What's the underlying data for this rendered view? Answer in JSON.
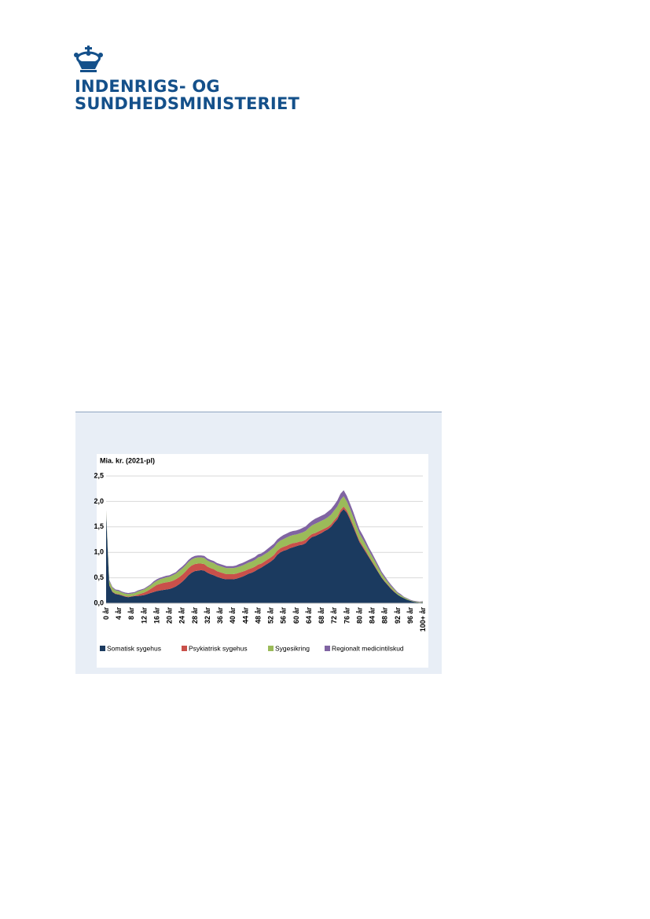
{
  "header": {
    "line1": "INDENRIGS- OG",
    "line2": "SUNDHEDSMINISTERIET"
  },
  "chart_data": {
    "type": "stacked-area",
    "ylabel": "Mia. kr. (2021-pl)",
    "ylim": [
      0,
      2.5
    ],
    "yticks": [
      {
        "value": 0,
        "label": "0,0"
      },
      {
        "value": 0.5,
        "label": "0,5"
      },
      {
        "value": 1,
        "label": "1,0"
      },
      {
        "value": 1.5,
        "label": "1,5"
      },
      {
        "value": 2,
        "label": "2,0"
      },
      {
        "value": 2.5,
        "label": "2,5"
      }
    ],
    "grid": true,
    "legend": "bottom",
    "categories": [
      "0 år",
      null,
      null,
      null,
      "4 år",
      null,
      null,
      null,
      "8 år",
      null,
      null,
      null,
      "12 år",
      null,
      null,
      null,
      "16 år",
      null,
      null,
      null,
      "20 år",
      null,
      null,
      null,
      "24 år",
      null,
      null,
      null,
      "28 år",
      null,
      null,
      null,
      "32 år",
      null,
      null,
      null,
      "36 år",
      null,
      null,
      null,
      "40 år",
      null,
      null,
      null,
      "44 år",
      null,
      null,
      null,
      "48 år",
      null,
      null,
      null,
      "52 år",
      null,
      null,
      null,
      "56 år",
      null,
      null,
      null,
      "60 år",
      null,
      null,
      null,
      "64 år",
      null,
      null,
      null,
      "68 år",
      null,
      null,
      null,
      "72 år",
      null,
      null,
      null,
      "76 år",
      null,
      null,
      null,
      "80 år",
      null,
      null,
      null,
      "84 år",
      null,
      null,
      null,
      "88 år",
      null,
      null,
      null,
      "92 år",
      null,
      null,
      null,
      "96 år",
      null,
      null,
      null,
      "100+ år"
    ],
    "series": [
      {
        "name": "Somatisk sygehus",
        "color": "#1b3a5f",
        "values": [
          1.75,
          0.35,
          0.22,
          0.18,
          0.17,
          0.15,
          0.13,
          0.12,
          0.13,
          0.14,
          0.14,
          0.15,
          0.16,
          0.18,
          0.2,
          0.22,
          0.24,
          0.25,
          0.26,
          0.27,
          0.28,
          0.3,
          0.33,
          0.37,
          0.42,
          0.48,
          0.55,
          0.6,
          0.63,
          0.64,
          0.65,
          0.64,
          0.6,
          0.57,
          0.55,
          0.52,
          0.5,
          0.48,
          0.47,
          0.47,
          0.47,
          0.48,
          0.5,
          0.52,
          0.55,
          0.58,
          0.6,
          0.63,
          0.67,
          0.7,
          0.74,
          0.78,
          0.82,
          0.87,
          0.95,
          1.0,
          1.03,
          1.05,
          1.08,
          1.1,
          1.12,
          1.14,
          1.15,
          1.18,
          1.25,
          1.3,
          1.32,
          1.35,
          1.38,
          1.42,
          1.45,
          1.5,
          1.58,
          1.65,
          1.78,
          1.85,
          1.78,
          1.65,
          1.5,
          1.35,
          1.2,
          1.1,
          1.0,
          0.9,
          0.8,
          0.7,
          0.6,
          0.5,
          0.42,
          0.35,
          0.28,
          0.22,
          0.17,
          0.13,
          0.1,
          0.07,
          0.05,
          0.03,
          0.02,
          0.01,
          0.02
        ]
      },
      {
        "name": "Psykiatrisk sygehus",
        "color": "#c9504a",
        "values": [
          0.01,
          0.01,
          0.01,
          0.01,
          0.01,
          0.01,
          0.01,
          0.01,
          0.01,
          0.01,
          0.03,
          0.04,
          0.05,
          0.06,
          0.08,
          0.1,
          0.12,
          0.13,
          0.14,
          0.14,
          0.14,
          0.14,
          0.14,
          0.14,
          0.14,
          0.14,
          0.14,
          0.14,
          0.14,
          0.14,
          0.13,
          0.13,
          0.12,
          0.12,
          0.12,
          0.11,
          0.11,
          0.11,
          0.1,
          0.1,
          0.1,
          0.1,
          0.1,
          0.1,
          0.09,
          0.09,
          0.09,
          0.09,
          0.09,
          0.08,
          0.08,
          0.08,
          0.08,
          0.08,
          0.08,
          0.08,
          0.08,
          0.08,
          0.08,
          0.08,
          0.07,
          0.07,
          0.07,
          0.07,
          0.06,
          0.06,
          0.06,
          0.06,
          0.06,
          0.05,
          0.05,
          0.05,
          0.05,
          0.05,
          0.05,
          0.05,
          0.04,
          0.04,
          0.04,
          0.03,
          0.03,
          0.03,
          0.03,
          0.02,
          0.02,
          0.02,
          0.01,
          0.01,
          0.01,
          0.01,
          0.01,
          0.01,
          0,
          0,
          0,
          0,
          0,
          0,
          0,
          0,
          0
        ]
      },
      {
        "name": "Sygesikring",
        "color": "#9bbb59",
        "values": [
          0.05,
          0.08,
          0.07,
          0.06,
          0.06,
          0.05,
          0.05,
          0.05,
          0.05,
          0.05,
          0.06,
          0.06,
          0.06,
          0.07,
          0.07,
          0.08,
          0.08,
          0.09,
          0.09,
          0.1,
          0.1,
          0.11,
          0.11,
          0.12,
          0.12,
          0.12,
          0.12,
          0.12,
          0.12,
          0.12,
          0.12,
          0.12,
          0.12,
          0.12,
          0.12,
          0.12,
          0.12,
          0.12,
          0.12,
          0.12,
          0.12,
          0.12,
          0.12,
          0.12,
          0.13,
          0.13,
          0.13,
          0.13,
          0.14,
          0.14,
          0.14,
          0.14,
          0.15,
          0.15,
          0.15,
          0.15,
          0.15,
          0.16,
          0.16,
          0.16,
          0.16,
          0.16,
          0.17,
          0.17,
          0.17,
          0.17,
          0.18,
          0.18,
          0.18,
          0.18,
          0.19,
          0.19,
          0.19,
          0.2,
          0.2,
          0.2,
          0.18,
          0.17,
          0.16,
          0.15,
          0.14,
          0.13,
          0.12,
          0.11,
          0.1,
          0.09,
          0.08,
          0.07,
          0.06,
          0.05,
          0.04,
          0.04,
          0.03,
          0.03,
          0.02,
          0.02,
          0.01,
          0.01,
          0.01,
          0.01,
          0.01
        ]
      },
      {
        "name": "Regionalt medicintilskud",
        "color": "#8064a2",
        "values": [
          0.02,
          0.02,
          0.02,
          0.02,
          0.02,
          0.02,
          0.02,
          0.02,
          0.02,
          0.02,
          0.02,
          0.02,
          0.02,
          0.02,
          0.02,
          0.03,
          0.03,
          0.03,
          0.03,
          0.03,
          0.03,
          0.03,
          0.03,
          0.04,
          0.04,
          0.04,
          0.04,
          0.04,
          0.04,
          0.04,
          0.04,
          0.04,
          0.04,
          0.04,
          0.04,
          0.04,
          0.04,
          0.04,
          0.04,
          0.04,
          0.04,
          0.04,
          0.05,
          0.05,
          0.05,
          0.05,
          0.06,
          0.06,
          0.06,
          0.06,
          0.06,
          0.07,
          0.07,
          0.07,
          0.07,
          0.07,
          0.08,
          0.08,
          0.08,
          0.08,
          0.08,
          0.08,
          0.09,
          0.09,
          0.09,
          0.09,
          0.1,
          0.1,
          0.1,
          0.1,
          0.11,
          0.11,
          0.11,
          0.12,
          0.12,
          0.12,
          0.11,
          0.1,
          0.1,
          0.09,
          0.08,
          0.08,
          0.07,
          0.06,
          0.06,
          0.05,
          0.05,
          0.04,
          0.04,
          0.03,
          0.03,
          0.02,
          0.02,
          0.02,
          0.01,
          0.01,
          0.01,
          0.01,
          0.01,
          0.01,
          0.01
        ]
      }
    ]
  }
}
